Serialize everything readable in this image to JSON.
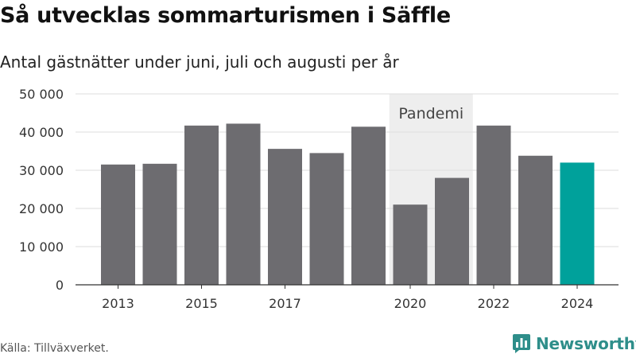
{
  "header": {
    "title": "Så utvecklas sommarturismen i Säffle",
    "subtitle": "Antal gästnätter under juni, juli och augusti per år"
  },
  "footer": {
    "source": "Källa: Tillväxverket.",
    "brand": "Newsworthy"
  },
  "colors": {
    "bar": "#6d6c70",
    "highlight": "#00a19b",
    "band": "#eeeeee",
    "grid": "#dddddd",
    "brand": "#2e8e8a"
  },
  "chart_data": {
    "type": "bar",
    "title": "Så utvecklas sommarturismen i Säffle",
    "subtitle": "Antal gästnätter under juni, juli och augusti per år",
    "categories": [
      "2013",
      "2014",
      "2015",
      "2016",
      "2017",
      "2018",
      "2019",
      "2020",
      "2021",
      "2022",
      "2023",
      "2024"
    ],
    "values": [
      31500,
      31700,
      41700,
      42200,
      35600,
      34500,
      41400,
      21000,
      28000,
      41700,
      33800,
      32000
    ],
    "highlight_category": "2024",
    "x_tick_labels": [
      "2013",
      "2015",
      "2017",
      "2020",
      "2022",
      "2024"
    ],
    "y_ticks": [
      0,
      10000,
      20000,
      30000,
      40000,
      50000
    ],
    "y_tick_labels": [
      "0",
      "10 000",
      "20 000",
      "30 000",
      "40 000",
      "50 000"
    ],
    "ylim": [
      0,
      50000
    ],
    "grid": true,
    "xlabel": "",
    "ylabel": "",
    "annotation": {
      "label": "Pandemi",
      "from": "2020",
      "to": "2021"
    },
    "source": "Källa: Tillväxverket."
  }
}
